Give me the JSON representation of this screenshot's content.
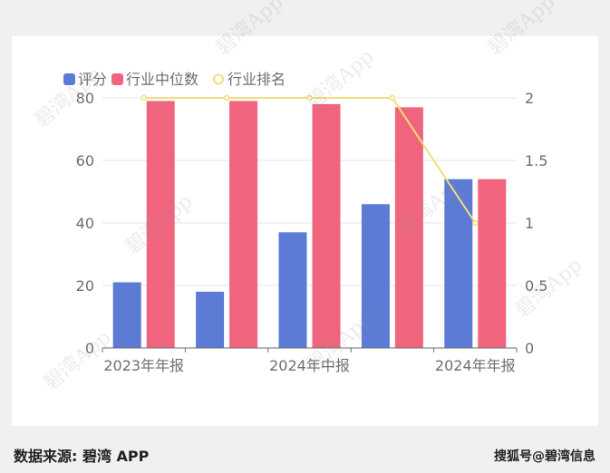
{
  "chart_data": {
    "type": "bar",
    "categories": [
      "2023年年报",
      "",
      "2024年中报",
      "",
      "2024年年报"
    ],
    "x_tick_labels": [
      "2023年年报",
      "2024年中报",
      "2024年年报"
    ],
    "series": [
      {
        "name": "评分",
        "type": "bar",
        "axis": "left",
        "color": "#5b7bd5",
        "values": [
          21,
          18,
          37,
          46,
          54
        ]
      },
      {
        "name": "行业中位数",
        "type": "bar",
        "axis": "left",
        "color": "#f0647e",
        "values": [
          79,
          79,
          78,
          77,
          54
        ]
      },
      {
        "name": "行业排名",
        "type": "line",
        "axis": "right",
        "color": "#f3dc7a",
        "values": [
          2,
          2,
          2,
          2,
          1
        ]
      }
    ],
    "y_left": {
      "min": 0,
      "max": 80,
      "ticks": [
        "0",
        "20",
        "40",
        "60",
        "80"
      ]
    },
    "y_right": {
      "min": 0,
      "max": 2,
      "ticks": [
        "0",
        "0.5",
        "1",
        "1.5",
        "2"
      ]
    },
    "legend_position": "top-left",
    "grid": true
  },
  "footer": {
    "source": "数据来源: 碧湾 APP",
    "credit": "搜狐号@碧湾信息"
  },
  "watermark_text": "碧湾App"
}
